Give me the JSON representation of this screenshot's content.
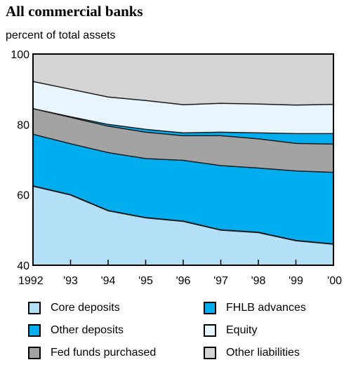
{
  "chart_data": {
    "type": "area",
    "title": "All commercial banks",
    "ylabel": "percent of total assets",
    "xlabel": "",
    "ylim": [
      40,
      100
    ],
    "yticks": [
      40,
      60,
      80,
      100
    ],
    "x": [
      "1992",
      "'93",
      "'94",
      "'95",
      "'96",
      "'97",
      "'98",
      "'99",
      "'00"
    ],
    "series": [
      {
        "name": "Core deposits",
        "color": "#b3e0f7",
        "values": [
          62.5,
          60.0,
          55.5,
          53.5,
          52.5,
          50.0,
          49.3,
          47.0,
          46.0
        ]
      },
      {
        "name": "Other deposits",
        "color": "#00aeef",
        "values": [
          14.7,
          14.5,
          16.5,
          16.8,
          17.3,
          18.3,
          18.3,
          19.8,
          20.4
        ]
      },
      {
        "name": "Fed funds purchased",
        "color": "#a3a3a3",
        "values": [
          7.3,
          7.5,
          7.5,
          7.5,
          7.0,
          8.5,
          8.3,
          7.8,
          8.0
        ]
      },
      {
        "name": "FHLB advances",
        "color": "#00aeef",
        "values": [
          0.0,
          0.2,
          0.5,
          0.8,
          0.8,
          1.0,
          1.7,
          2.8,
          3.0
        ]
      },
      {
        "name": "Equity",
        "color": "#e8f5fc",
        "values": [
          7.7,
          7.8,
          7.8,
          8.2,
          8.0,
          8.2,
          8.2,
          8.1,
          8.3
        ]
      },
      {
        "name": "Other liabilities",
        "color": "#d4d4d4",
        "values": [
          7.8,
          10.0,
          12.2,
          13.2,
          14.4,
          14.0,
          14.2,
          14.5,
          14.3
        ]
      }
    ],
    "legend_position": "bottom",
    "grid": false
  }
}
